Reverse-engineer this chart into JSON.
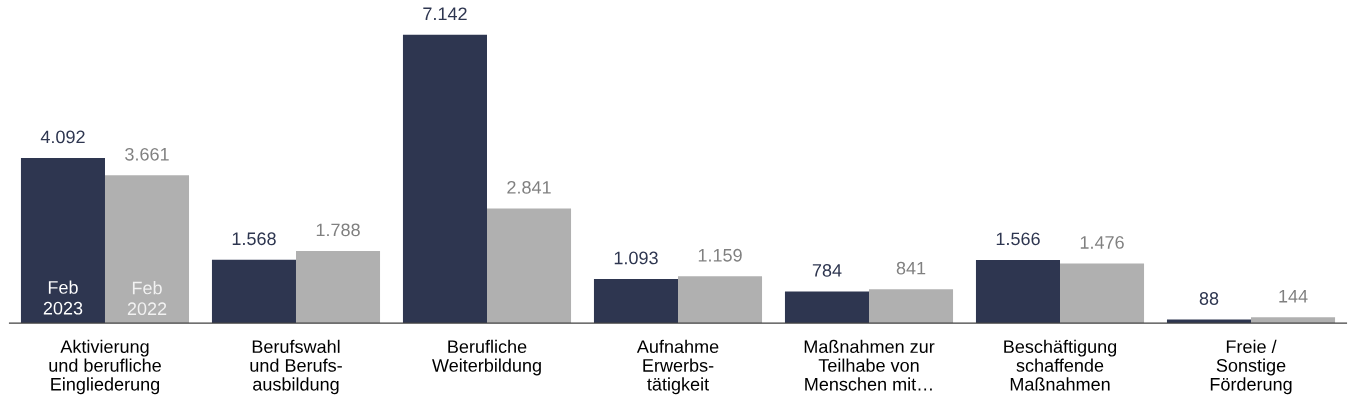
{
  "chart_data": {
    "type": "bar",
    "categories": [
      "Aktivierung\nund berufliche\nEingliederung",
      "Berufswahl\nund Berufs-\nausbildung",
      "Berufliche\nWeiterbildung",
      "Aufnahme\nErwerbs-\ntätigkeit",
      "Maßnahmen zur\nTeilhabe von\nMenschen mit…",
      "Beschäftigung\nschaffende\nMaßnahmen",
      "Freie /\nSonstige\nFörderung"
    ],
    "series": [
      {
        "name": "Feb\n2023",
        "color": "#2e3650",
        "values": [
          4092,
          1568,
          7142,
          1093,
          784,
          1566,
          88
        ],
        "value_labels": [
          "4.092",
          "1.568",
          "7.142",
          "1.093",
          "784",
          "1.566",
          "88"
        ]
      },
      {
        "name": "Feb\n2022",
        "color": "#b0b0b0",
        "values": [
          3661,
          1788,
          2841,
          1159,
          841,
          1476,
          144
        ],
        "value_labels": [
          "3.661",
          "1.788",
          "2.841",
          "1.159",
          "841",
          "1.476",
          "144"
        ]
      }
    ],
    "grid": false,
    "legend": false
  }
}
